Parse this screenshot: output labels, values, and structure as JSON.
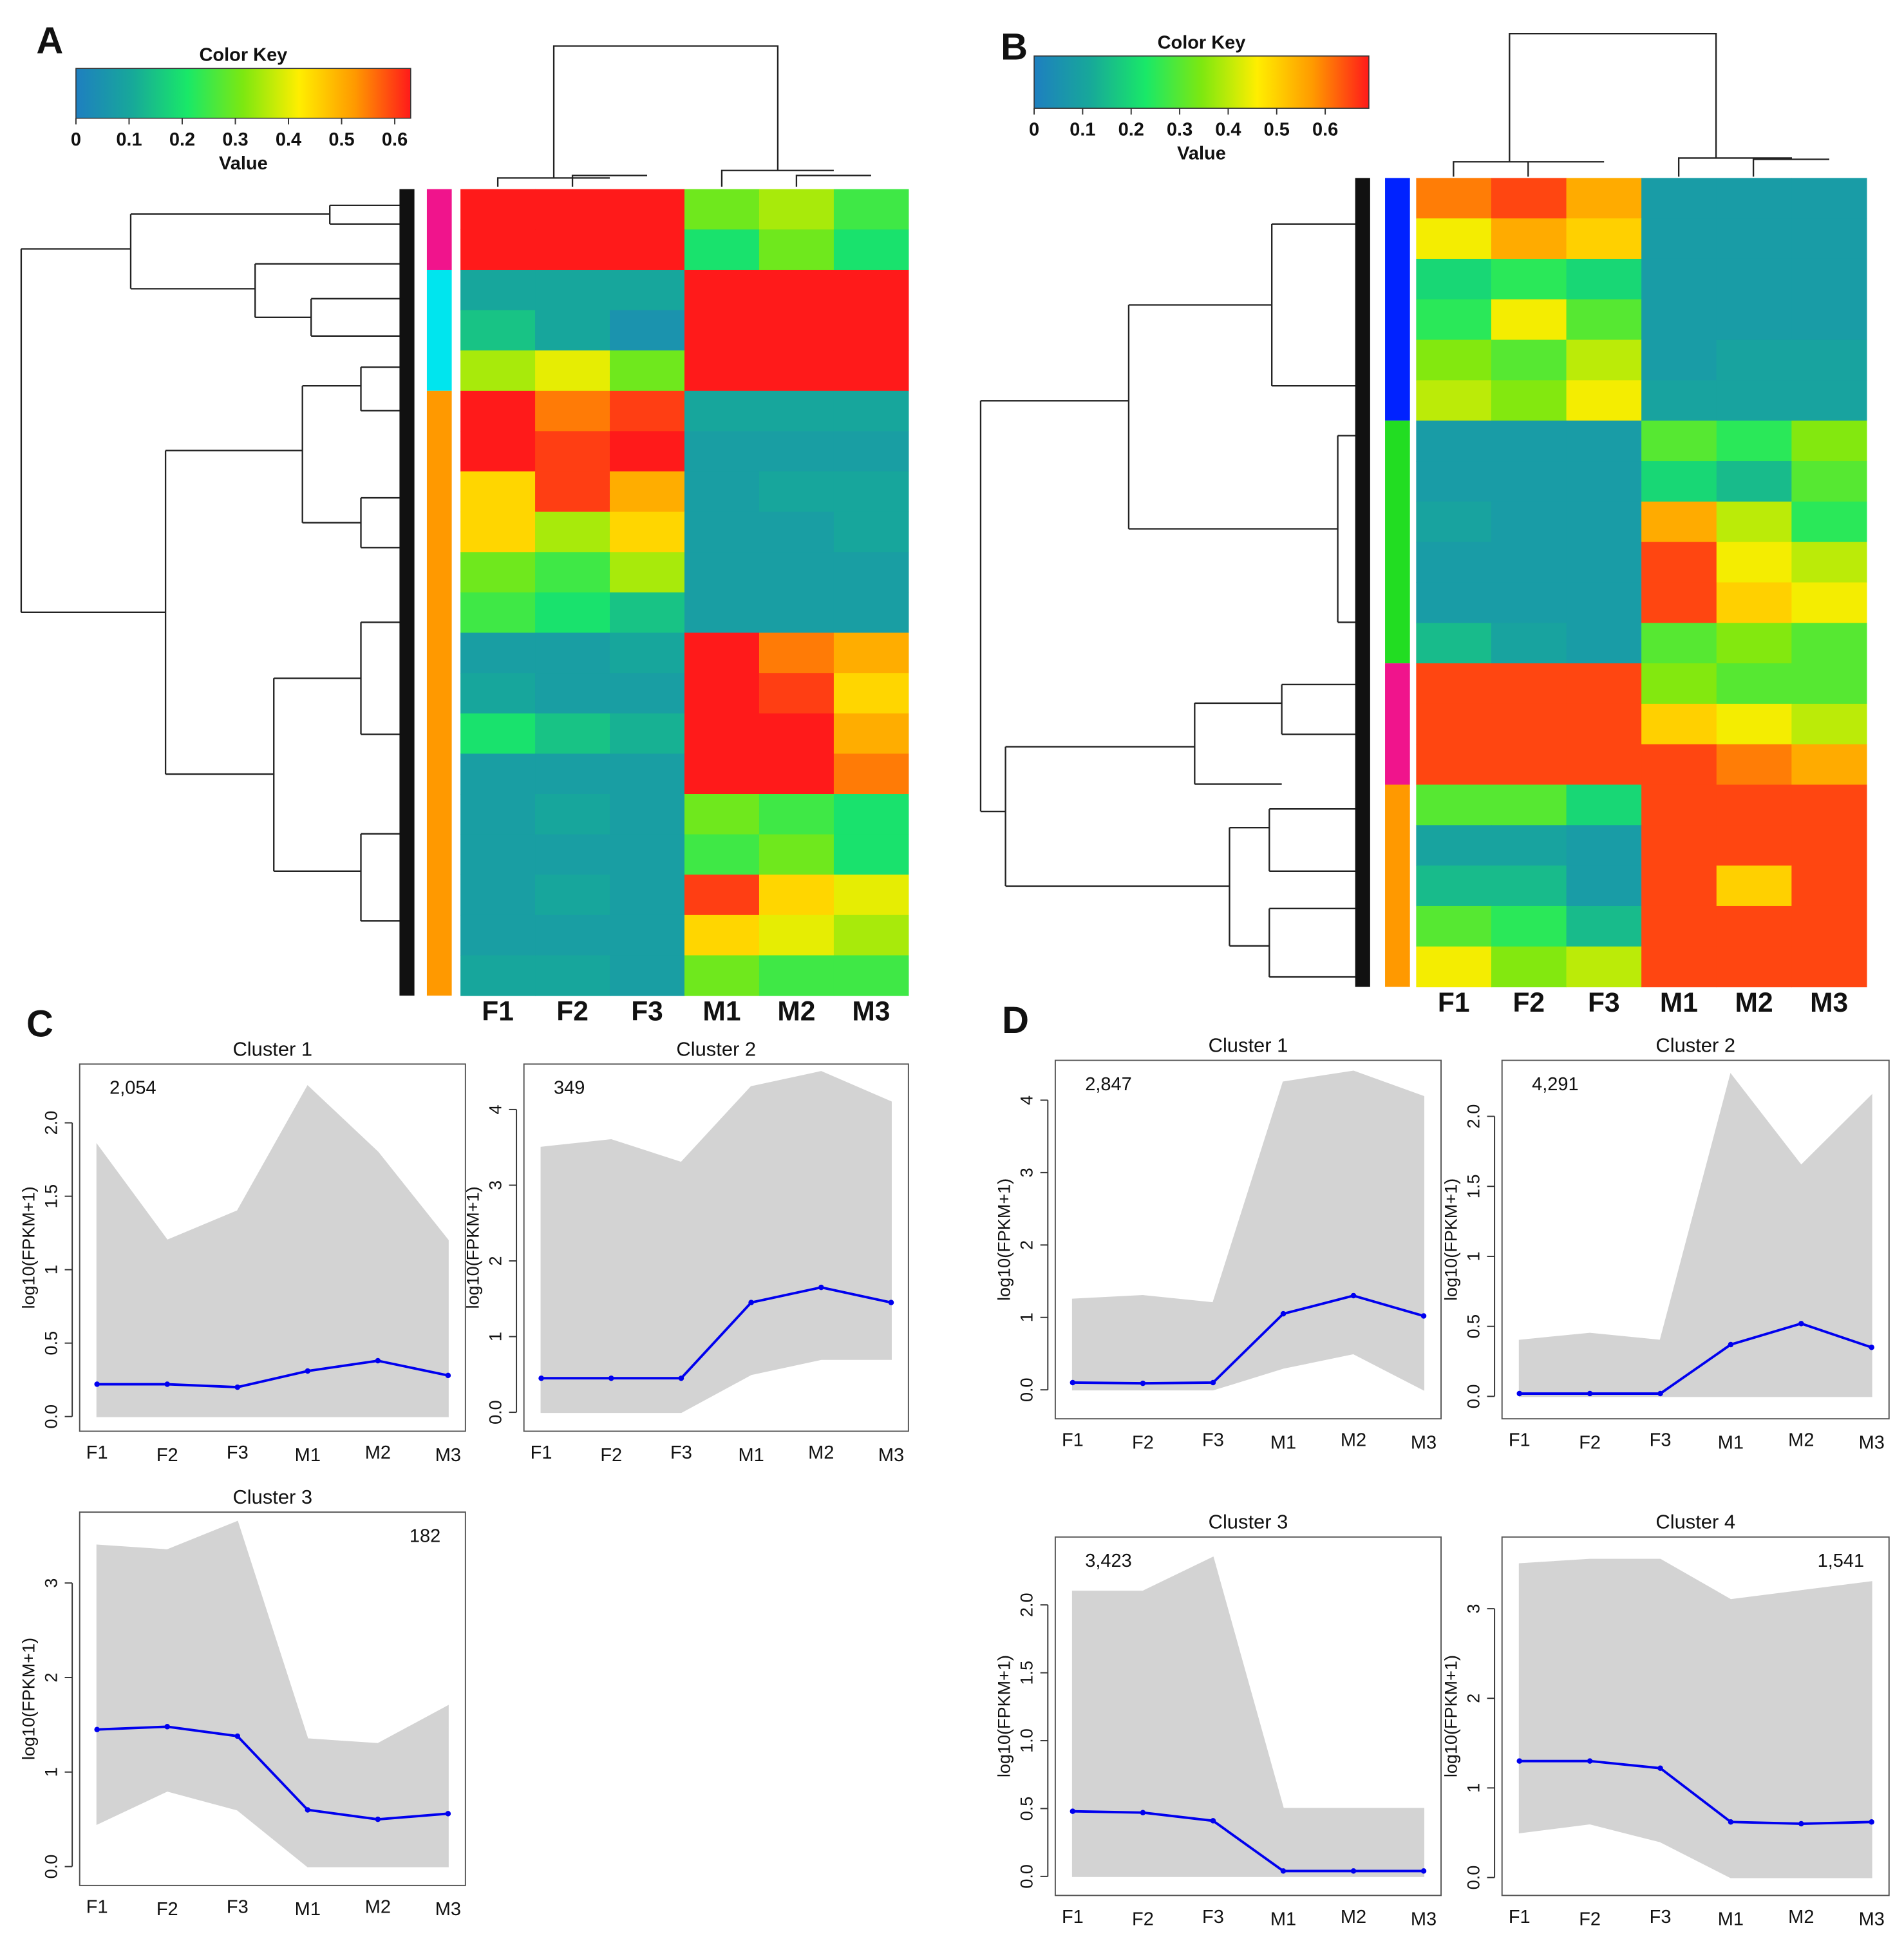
{
  "chart_data": [
    {
      "type": "heatmap",
      "panel": "A",
      "colorkey_title": "Color Key",
      "colorkey_label": "Value",
      "clim": [
        0,
        0.63
      ],
      "colorbar_ticks": [
        0,
        0.1,
        0.2,
        0.3,
        0.4,
        0.5,
        0.6
      ],
      "colormap": [
        "#1e7fc0",
        "#17a89a",
        "#19e868",
        "#7de810",
        "#ffee00",
        "#ff9900",
        "#ff1a1a"
      ],
      "columns": [
        "F1",
        "F2",
        "F3",
        "M1",
        "M2",
        "M3"
      ],
      "groups": [
        {
          "color": "#f0148c",
          "rows": [
            [
              0.65,
              0.65,
              0.65,
              0.3,
              0.35,
              0.25
            ],
            [
              0.65,
              0.65,
              0.65,
              0.2,
              0.3,
              0.2
            ]
          ]
        },
        {
          "color": "#00e5ee",
          "rows": [
            [
              0.1,
              0.1,
              0.1,
              0.65,
              0.65,
              0.65
            ],
            [
              0.15,
              0.1,
              0.05,
              0.65,
              0.65,
              0.65
            ],
            [
              0.35,
              0.4,
              0.3,
              0.65,
              0.65,
              0.65
            ]
          ]
        },
        {
          "color": "#ff9900",
          "rows": [
            [
              0.65,
              0.55,
              0.6,
              0.1,
              0.1,
              0.1
            ],
            [
              0.65,
              0.6,
              0.65,
              0.08,
              0.08,
              0.08
            ],
            [
              0.45,
              0.6,
              0.5,
              0.08,
              0.1,
              0.1
            ],
            [
              0.45,
              0.35,
              0.45,
              0.08,
              0.08,
              0.1
            ],
            [
              0.3,
              0.25,
              0.35,
              0.08,
              0.08,
              0.08
            ],
            [
              0.25,
              0.2,
              0.15,
              0.08,
              0.08,
              0.08
            ],
            [
              0.08,
              0.08,
              0.1,
              0.65,
              0.55,
              0.5
            ],
            [
              0.1,
              0.08,
              0.08,
              0.65,
              0.6,
              0.45
            ],
            [
              0.2,
              0.15,
              0.12,
              0.65,
              0.65,
              0.5
            ],
            [
              0.08,
              0.08,
              0.08,
              0.65,
              0.65,
              0.55
            ],
            [
              0.08,
              0.1,
              0.08,
              0.3,
              0.25,
              0.2
            ],
            [
              0.08,
              0.08,
              0.08,
              0.25,
              0.3,
              0.2
            ],
            [
              0.08,
              0.1,
              0.08,
              0.6,
              0.45,
              0.4
            ],
            [
              0.08,
              0.08,
              0.08,
              0.45,
              0.4,
              0.35
            ],
            [
              0.1,
              0.1,
              0.08,
              0.3,
              0.25,
              0.25
            ]
          ]
        }
      ]
    },
    {
      "type": "heatmap",
      "panel": "B",
      "colorkey_title": "Color Key",
      "colorkey_label": "Value",
      "clim": [
        0,
        0.69
      ],
      "colorbar_ticks": [
        0,
        0.1,
        0.2,
        0.3,
        0.4,
        0.5,
        0.6
      ],
      "colormap": [
        "#1e7fc0",
        "#17a89a",
        "#19e868",
        "#7de810",
        "#ffee00",
        "#ff9900",
        "#ff1a1a"
      ],
      "columns": [
        "F1",
        "F2",
        "F3",
        "M1",
        "M2",
        "M3"
      ],
      "groups": [
        {
          "color": "#0022ff",
          "rows": [
            [
              0.6,
              0.65,
              0.55,
              0.08,
              0.08,
              0.08
            ],
            [
              0.45,
              0.55,
              0.5,
              0.08,
              0.08,
              0.08
            ],
            [
              0.2,
              0.25,
              0.2,
              0.08,
              0.08,
              0.08
            ],
            [
              0.25,
              0.45,
              0.3,
              0.08,
              0.08,
              0.08
            ],
            [
              0.35,
              0.3,
              0.4,
              0.08,
              0.1,
              0.1
            ],
            [
              0.4,
              0.35,
              0.45,
              0.1,
              0.1,
              0.1
            ]
          ]
        },
        {
          "color": "#22dd22",
          "rows": [
            [
              0.08,
              0.08,
              0.08,
              0.3,
              0.25,
              0.35
            ],
            [
              0.08,
              0.08,
              0.08,
              0.2,
              0.15,
              0.3
            ],
            [
              0.1,
              0.08,
              0.08,
              0.55,
              0.4,
              0.25
            ],
            [
              0.08,
              0.08,
              0.08,
              0.65,
              0.45,
              0.4
            ],
            [
              0.08,
              0.08,
              0.08,
              0.65,
              0.5,
              0.45
            ],
            [
              0.15,
              0.1,
              0.08,
              0.3,
              0.35,
              0.3
            ]
          ]
        },
        {
          "color": "#f0148c",
          "rows": [
            [
              0.65,
              0.65,
              0.65,
              0.35,
              0.3,
              0.3
            ],
            [
              0.65,
              0.65,
              0.65,
              0.5,
              0.45,
              0.4
            ],
            [
              0.65,
              0.65,
              0.65,
              0.65,
              0.6,
              0.55
            ]
          ]
        },
        {
          "color": "#ff9900",
          "rows": [
            [
              0.3,
              0.3,
              0.2,
              0.65,
              0.65,
              0.65
            ],
            [
              0.1,
              0.1,
              0.08,
              0.65,
              0.65,
              0.65
            ],
            [
              0.15,
              0.15,
              0.08,
              0.65,
              0.5,
              0.65
            ],
            [
              0.3,
              0.25,
              0.15,
              0.65,
              0.65,
              0.65
            ],
            [
              0.45,
              0.35,
              0.4,
              0.65,
              0.65,
              0.65
            ]
          ]
        }
      ]
    },
    {
      "type": "line",
      "panel": "C",
      "title": "Cluster 1",
      "annotation": "2,054",
      "annotation_position": "upper left",
      "ylabel": "log10(FPKM+1)",
      "categories": [
        "F1",
        "F2",
        "F3",
        "M1",
        "M2",
        "M3"
      ],
      "ylim": [
        -0.1,
        2.4
      ],
      "yticks": [
        {
          "value": 0,
          "label": "0.0"
        },
        0.5,
        1,
        1.5,
        {
          "value": 2,
          "label": "2.0"
        }
      ],
      "series": [
        {
          "color": "#0000ee",
          "values": [
            0.22,
            0.22,
            0.2,
            0.31,
            0.38,
            0.28
          ]
        }
      ],
      "band": {
        "color": "#d3d3d3",
        "upper": [
          1.85,
          1.2,
          1.4,
          2.25,
          1.8,
          1.2
        ],
        "lower": [
          0,
          0,
          0,
          0,
          0,
          0
        ]
      }
    },
    {
      "type": "line",
      "title": "Cluster 2",
      "annotation": "349",
      "annotation_position": "upper left",
      "ylabel": "log10(FPKM+1)",
      "categories": [
        "F1",
        "F2",
        "F3",
        "M1",
        "M2",
        "M3"
      ],
      "ylim": [
        -0.25,
        4.6
      ],
      "yticks": [
        {
          "value": 0,
          "label": "0.0"
        },
        1,
        2,
        3,
        4
      ],
      "series": [
        {
          "color": "#0000ee",
          "values": [
            0.45,
            0.45,
            0.45,
            1.45,
            1.65,
            1.45
          ]
        }
      ],
      "band": {
        "color": "#d3d3d3",
        "upper": [
          3.5,
          3.6,
          3.3,
          4.3,
          4.5,
          4.1
        ],
        "lower": [
          0,
          0,
          0,
          0.5,
          0.7,
          0.7
        ]
      }
    },
    {
      "type": "line",
      "title": "Cluster 3",
      "annotation": "182",
      "annotation_position": "upper right",
      "ylabel": "log10(FPKM+1)",
      "categories": [
        "F1",
        "F2",
        "F3",
        "M1",
        "M2",
        "M3"
      ],
      "ylim": [
        -0.2,
        3.75
      ],
      "yticks": [
        {
          "value": 0,
          "label": "0.0"
        },
        1,
        2,
        3
      ],
      "series": [
        {
          "color": "#0000ee",
          "values": [
            1.45,
            1.48,
            1.38,
            0.6,
            0.5,
            0.56
          ]
        }
      ],
      "band": {
        "color": "#d3d3d3",
        "upper": [
          3.4,
          3.35,
          3.65,
          1.35,
          1.3,
          1.7
        ],
        "lower": [
          0.45,
          0.8,
          0.6,
          0,
          0,
          0
        ]
      }
    },
    {
      "type": "line",
      "panel": "D",
      "title": "Cluster 1",
      "annotation": "2,847",
      "annotation_position": "upper left",
      "ylabel": "log10(FPKM+1)",
      "categories": [
        "F1",
        "F2",
        "F3",
        "M1",
        "M2",
        "M3"
      ],
      "ylim": [
        -0.4,
        4.55
      ],
      "yticks": [
        {
          "value": 0,
          "label": "0.0"
        },
        1,
        2,
        3,
        4
      ],
      "series": [
        {
          "color": "#0000ee",
          "values": [
            0.1,
            0.09,
            0.1,
            1.05,
            1.3,
            1.02
          ]
        }
      ],
      "band": {
        "color": "#d3d3d3",
        "upper": [
          1.25,
          1.3,
          1.2,
          4.25,
          4.4,
          4.05
        ],
        "lower": [
          0,
          0,
          0,
          0.3,
          0.5,
          0
        ]
      }
    },
    {
      "type": "line",
      "title": "Cluster 2",
      "annotation": "4,291",
      "annotation_position": "upper left",
      "ylabel": "log10(FPKM+1)",
      "categories": [
        "F1",
        "F2",
        "F3",
        "M1",
        "M2",
        "M3"
      ],
      "ylim": [
        -0.16,
        2.4
      ],
      "yticks": [
        {
          "value": 0,
          "label": "0.0"
        },
        0.5,
        1,
        1.5,
        {
          "value": 2,
          "label": "2.0"
        }
      ],
      "series": [
        {
          "color": "#0000ee",
          "values": [
            0.02,
            0.02,
            0.02,
            0.37,
            0.52,
            0.35
          ]
        }
      ],
      "band": {
        "color": "#d3d3d3",
        "upper": [
          0.4,
          0.45,
          0.4,
          2.3,
          1.65,
          2.15
        ],
        "lower": [
          0,
          0,
          0,
          0,
          0,
          0
        ]
      }
    },
    {
      "type": "line",
      "title": "Cluster 3",
      "annotation": "3,423",
      "annotation_position": "upper left",
      "ylabel": "log10(FPKM+1)",
      "categories": [
        "F1",
        "F2",
        "F3",
        "M1",
        "M2",
        "M3"
      ],
      "ylim": [
        -0.14,
        2.5
      ],
      "yticks": [
        {
          "value": 0,
          "label": "0.0"
        },
        0.5,
        {
          "value": 1,
          "label": "1.0"
        },
        1.5,
        {
          "value": 2,
          "label": "2.0"
        }
      ],
      "series": [
        {
          "color": "#0000ee",
          "values": [
            0.48,
            0.47,
            0.41,
            0.04,
            0.04,
            0.04
          ]
        }
      ],
      "band": {
        "color": "#d3d3d3",
        "upper": [
          2.1,
          2.1,
          2.35,
          0.5,
          0.5,
          0.5
        ],
        "lower": [
          0,
          0,
          0,
          0,
          0,
          0
        ]
      }
    },
    {
      "type": "line",
      "title": "Cluster 4",
      "annotation": "1,541",
      "annotation_position": "upper right",
      "ylabel": "log10(FPKM+1)",
      "categories": [
        "F1",
        "F2",
        "F3",
        "M1",
        "M2",
        "M3"
      ],
      "ylim": [
        -0.2,
        3.8
      ],
      "yticks": [
        {
          "value": 0,
          "label": "0.0"
        },
        1,
        2,
        3
      ],
      "series": [
        {
          "color": "#0000ee",
          "values": [
            1.3,
            1.3,
            1.22,
            0.62,
            0.6,
            0.62
          ]
        }
      ],
      "band": {
        "color": "#d3d3d3",
        "upper": [
          3.5,
          3.55,
          3.55,
          3.1,
          3.2,
          3.3
        ],
        "lower": [
          0.5,
          0.6,
          0.4,
          0,
          0,
          0
        ]
      }
    }
  ]
}
